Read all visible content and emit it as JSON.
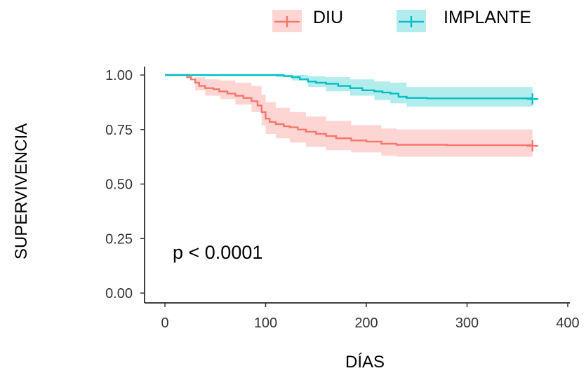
{
  "chart_data": {
    "type": "line",
    "subtype": "kaplan-meier survival",
    "xlabel": "DÍAS",
    "ylabel": "SUPERVIVENCIA",
    "xlim": [
      0,
      400
    ],
    "ylim": [
      0,
      1
    ],
    "x_ticks": [
      "0",
      "100",
      "200",
      "300",
      "400"
    ],
    "y_ticks": [
      "0.00",
      "0.25",
      "0.50",
      "0.75",
      "1.00"
    ],
    "grid": false,
    "legend_position": "top",
    "annotation": "p < 0.0001",
    "series": [
      {
        "name": "DIU",
        "color": "#F8766D",
        "steps": [
          [
            0,
            1.0
          ],
          [
            20,
            1.0
          ],
          [
            22,
            0.99
          ],
          [
            26,
            0.98
          ],
          [
            30,
            0.965
          ],
          [
            34,
            0.95
          ],
          [
            40,
            0.94
          ],
          [
            48,
            0.935
          ],
          [
            54,
            0.925
          ],
          [
            62,
            0.915
          ],
          [
            70,
            0.905
          ],
          [
            78,
            0.895
          ],
          [
            86,
            0.88
          ],
          [
            92,
            0.86
          ],
          [
            96,
            0.83
          ],
          [
            100,
            0.8
          ],
          [
            104,
            0.785
          ],
          [
            110,
            0.775
          ],
          [
            118,
            0.765
          ],
          [
            124,
            0.76
          ],
          [
            132,
            0.75
          ],
          [
            140,
            0.74
          ],
          [
            150,
            0.73
          ],
          [
            160,
            0.72
          ],
          [
            170,
            0.71
          ],
          [
            185,
            0.7
          ],
          [
            200,
            0.695
          ],
          [
            215,
            0.685
          ],
          [
            230,
            0.68
          ],
          [
            280,
            0.678
          ],
          [
            365,
            0.675
          ]
        ],
        "ci_upper": [
          [
            0,
            1.0
          ],
          [
            20,
            1.0
          ],
          [
            30,
            0.99
          ],
          [
            40,
            0.98
          ],
          [
            55,
            0.975
          ],
          [
            70,
            0.965
          ],
          [
            86,
            0.95
          ],
          [
            96,
            0.91
          ],
          [
            100,
            0.875
          ],
          [
            110,
            0.85
          ],
          [
            124,
            0.83
          ],
          [
            140,
            0.81
          ],
          [
            160,
            0.79
          ],
          [
            185,
            0.77
          ],
          [
            215,
            0.755
          ],
          [
            230,
            0.75
          ],
          [
            365,
            0.745
          ]
        ],
        "ci_lower": [
          [
            0,
            1.0
          ],
          [
            20,
            0.995
          ],
          [
            30,
            0.93
          ],
          [
            40,
            0.905
          ],
          [
            55,
            0.89
          ],
          [
            70,
            0.865
          ],
          [
            86,
            0.83
          ],
          [
            96,
            0.77
          ],
          [
            100,
            0.73
          ],
          [
            110,
            0.71
          ],
          [
            124,
            0.69
          ],
          [
            140,
            0.67
          ],
          [
            160,
            0.655
          ],
          [
            185,
            0.645
          ],
          [
            215,
            0.63
          ],
          [
            230,
            0.625
          ],
          [
            365,
            0.62
          ]
        ],
        "censor_x": [
          365
        ]
      },
      {
        "name": "IMPLANTE",
        "color": "#00BFC4",
        "steps": [
          [
            0,
            1.0
          ],
          [
            110,
            1.0
          ],
          [
            118,
            0.995
          ],
          [
            126,
            0.99
          ],
          [
            134,
            0.98
          ],
          [
            142,
            0.97
          ],
          [
            150,
            0.965
          ],
          [
            160,
            0.96
          ],
          [
            172,
            0.95
          ],
          [
            184,
            0.94
          ],
          [
            196,
            0.93
          ],
          [
            208,
            0.925
          ],
          [
            216,
            0.92
          ],
          [
            224,
            0.915
          ],
          [
            232,
            0.9
          ],
          [
            240,
            0.895
          ],
          [
            260,
            0.893
          ],
          [
            365,
            0.89
          ]
        ],
        "ci_upper": [
          [
            0,
            1.0
          ],
          [
            110,
            1.0
          ],
          [
            126,
            1.0
          ],
          [
            142,
            0.995
          ],
          [
            160,
            0.99
          ],
          [
            184,
            0.98
          ],
          [
            208,
            0.97
          ],
          [
            224,
            0.965
          ],
          [
            240,
            0.945
          ],
          [
            365,
            0.94
          ]
        ],
        "ci_lower": [
          [
            0,
            1.0
          ],
          [
            110,
            0.99
          ],
          [
            126,
            0.975
          ],
          [
            142,
            0.945
          ],
          [
            160,
            0.925
          ],
          [
            184,
            0.905
          ],
          [
            208,
            0.885
          ],
          [
            224,
            0.87
          ],
          [
            240,
            0.855
          ],
          [
            365,
            0.85
          ]
        ],
        "censor_x": [
          365
        ]
      }
    ]
  }
}
